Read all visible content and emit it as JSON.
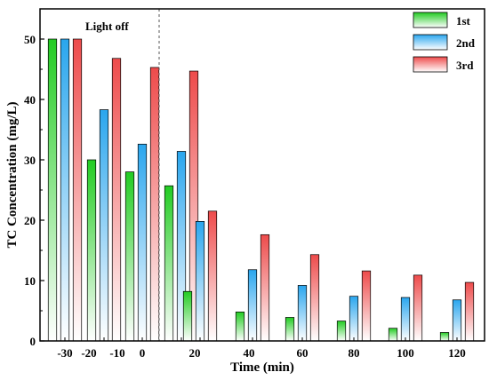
{
  "chart_data": {
    "type": "bar",
    "xlabel": "Time (min)",
    "ylabel": "TC Concentration (mg/L)",
    "ylim": [
      0,
      55
    ],
    "yticks": [
      0,
      10,
      20,
      30,
      40,
      50
    ],
    "grid": false,
    "legend_position": "top-right",
    "annotation": "Light off",
    "categories": [
      "-30",
      "-20",
      "-10",
      "0",
      "20",
      "40",
      "60",
      "80",
      "100",
      "120"
    ],
    "series": [
      {
        "name": "1st",
        "color": "#22cc22",
        "values": [
          50.0,
          30.0,
          28.0,
          25.7,
          8.2,
          4.8,
          3.9,
          3.3,
          2.1,
          1.4
        ]
      },
      {
        "name": "2nd",
        "color": "#2aa6ee",
        "values": [
          50.0,
          38.3,
          32.6,
          31.4,
          19.8,
          11.8,
          9.2,
          7.4,
          7.2,
          6.8
        ]
      },
      {
        "name": "3rd",
        "color": "#ee4b4b",
        "values": [
          50.0,
          46.8,
          45.3,
          44.7,
          21.5,
          17.6,
          14.3,
          11.6,
          10.9,
          9.7
        ]
      }
    ]
  }
}
